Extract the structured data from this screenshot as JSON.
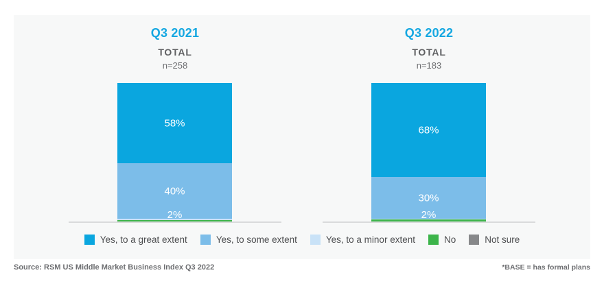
{
  "colors": {
    "panel_bg": "#f7f8f8",
    "title_blue": "#14a7e1",
    "great_extent": "#0aa6df",
    "some_extent": "#7cbde9",
    "minor_extent": "#c9e2f7",
    "no": "#3cb44a",
    "not_sure": "#87888a",
    "axis_line": "#d9dadb",
    "text_gray": "#6d6e71"
  },
  "chart_data": {
    "type": "bar",
    "stacked": true,
    "grid": false,
    "legend_position": "bottom",
    "categories": [
      "Q3 2021",
      "Q3 2022"
    ],
    "series": [
      {
        "name": "Yes, to a great extent",
        "values": [
          58,
          68
        ]
      },
      {
        "name": "Yes, to some extent",
        "values": [
          40,
          30
        ]
      },
      {
        "name": "Yes, to a minor extent",
        "values": [
          2,
          2
        ]
      },
      {
        "name": "No",
        "values": [
          null,
          null
        ]
      },
      {
        "name": "Not sure",
        "values": [
          null,
          null
        ]
      }
    ],
    "groups": [
      {
        "title": "Q3 2021",
        "subtitle": "TOTAL",
        "base": "n=258",
        "segments": [
          {
            "series": "Yes, to a great extent",
            "value": 58,
            "label": "58%",
            "height_pct": 58
          },
          {
            "series": "Yes, to some extent",
            "value": 40,
            "label": "40%",
            "height_pct": 40
          },
          {
            "series": "Yes, to a minor extent",
            "value": 2,
            "label": "2%",
            "height_pct": 1.2
          },
          {
            "series": "No",
            "value": null,
            "label": "",
            "height_pct": 0.8
          }
        ]
      },
      {
        "title": "Q3 2022",
        "subtitle": "TOTAL",
        "base": "n=183",
        "segments": [
          {
            "series": "Yes, to a great extent",
            "value": 68,
            "label": "68%",
            "height_pct": 68
          },
          {
            "series": "Yes, to some extent",
            "value": 30,
            "label": "30%",
            "height_pct": 30
          },
          {
            "series": "Yes, to a minor extent",
            "value": 2,
            "label": "2%",
            "height_pct": 0.6
          },
          {
            "series": "No",
            "value": null,
            "label": "",
            "height_pct": 1.4
          }
        ]
      }
    ],
    "legend": [
      {
        "label": "Yes, to a great extent",
        "color": "#0aa6df"
      },
      {
        "label": "Yes, to some extent",
        "color": "#7cbde9"
      },
      {
        "label": "Yes, to a minor extent",
        "color": "#c9e2f7"
      },
      {
        "label": "No",
        "color": "#3cb44a"
      },
      {
        "label": "Not sure",
        "color": "#87888a"
      }
    ]
  },
  "footer": {
    "source": "Source: RSM US Middle Market Business Index Q3 2022",
    "base_note": "*BASE = has formal plans"
  }
}
